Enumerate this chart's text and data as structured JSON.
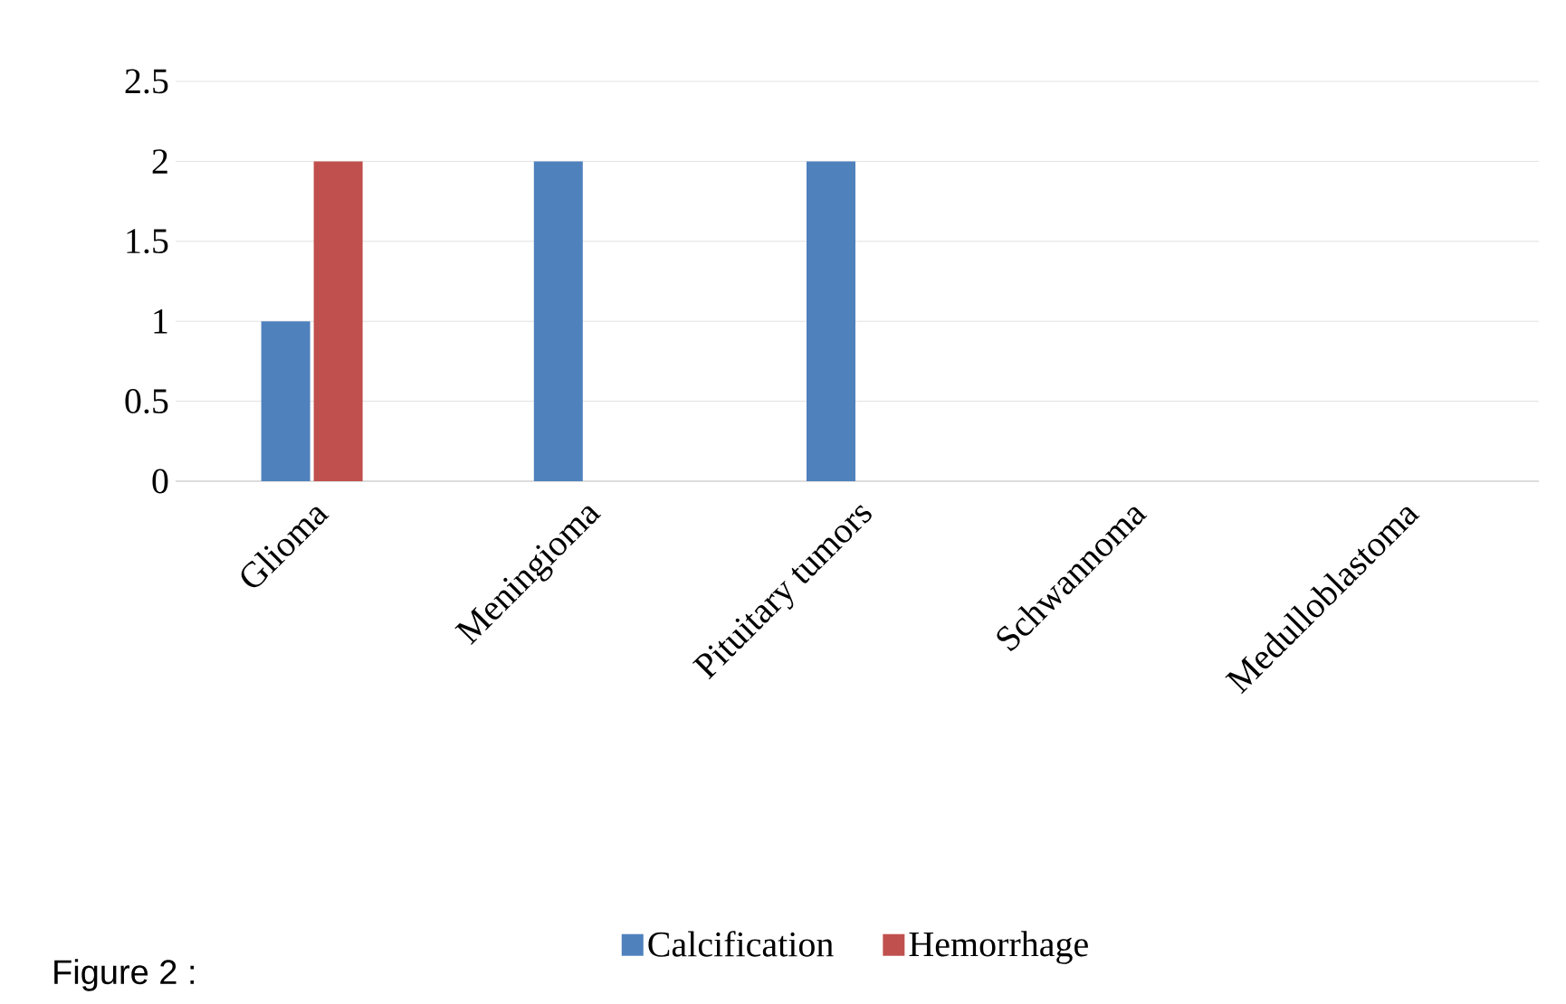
{
  "chart_data": {
    "type": "bar",
    "categories": [
      "Glioma",
      "Meningioma",
      "Pituitary tumors",
      "Schwannoma",
      "Medulloblastoma"
    ],
    "series": [
      {
        "name": "Calcification",
        "color": "#4f81bd",
        "values": [
          1,
          2,
          2,
          0,
          0
        ]
      },
      {
        "name": "Hemorrhage",
        "color": "#c0504d",
        "values": [
          2,
          0,
          0,
          0,
          0
        ]
      }
    ],
    "ylim": [
      0,
      2.5
    ],
    "yticks": [
      0,
      0.5,
      1,
      1.5,
      2,
      2.5
    ],
    "grid": "y",
    "legend": "bottom",
    "annotations": [
      "Figure 2 :"
    ]
  }
}
